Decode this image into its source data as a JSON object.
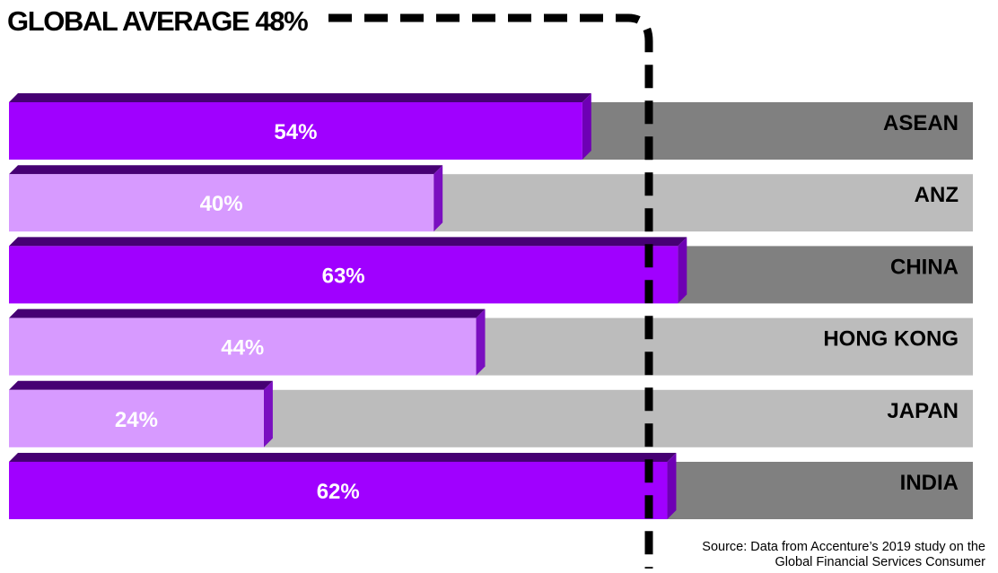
{
  "chart_data": {
    "type": "bar",
    "orientation": "horizontal",
    "title": "GLOBAL AVERAGE 48%",
    "reference_line": {
      "value": 48,
      "style": "dashed"
    },
    "categories": [
      "ASEAN",
      "ANZ",
      "CHINA",
      "HONG KONG",
      "JAPAN",
      "INDIA"
    ],
    "values": [
      54,
      40,
      63,
      44,
      24,
      62
    ],
    "value_labels": [
      "54%",
      "40%",
      "63%",
      "44%",
      "24%",
      "62%"
    ],
    "xlim": [
      0,
      100
    ],
    "grid": false,
    "colors": {
      "above_average": "#a000ff",
      "above_average_edge": "#6e00b4",
      "above_average_track": "#808080",
      "below_average": "#d79aff",
      "below_average_edge": "#7a0fc0",
      "below_average_track": "#bcbcbc",
      "top_edge": "#460073",
      "reference_line": "#000000"
    }
  },
  "source": {
    "line1": "Source: Data from Accenture’s 2019 study on the",
    "line2": "Global Financial Services Consumer"
  }
}
